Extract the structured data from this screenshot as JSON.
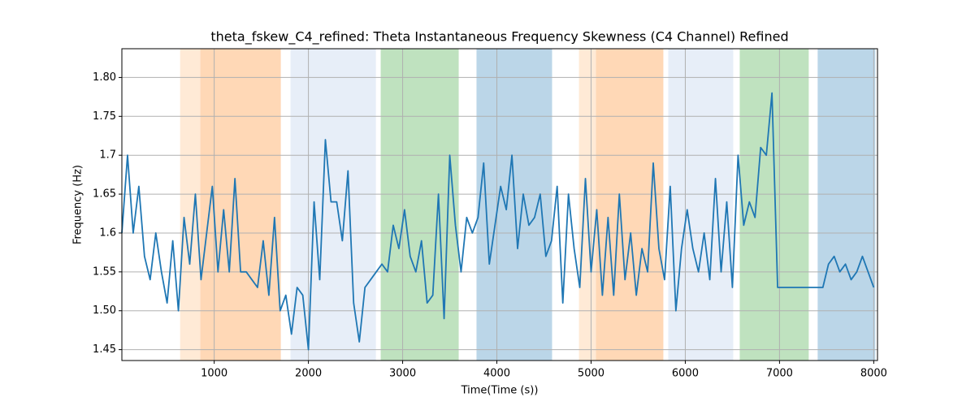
{
  "chart_data": {
    "type": "line",
    "title": "theta_fskew_C4_refined: Theta Instantaneous Frequency Skewness (C4 Channel) Refined",
    "x_label": "Time(Time (s))",
    "y_label": "Frequency (Hz)",
    "xlim": [
      20,
      8040
    ],
    "ylim": [
      1.436,
      1.837
    ],
    "xticks": [
      1000,
      2000,
      3000,
      4000,
      5000,
      6000,
      7000,
      8000
    ],
    "yticks": [
      1.45,
      {
        "value": 1.5,
        "label": "1.50"
      },
      1.55,
      1.6,
      1.65,
      1.7,
      1.75,
      {
        "value": 1.8,
        "label": "1.80"
      }
    ],
    "grid": true,
    "spans": [
      {
        "start": 638,
        "end": 853,
        "color": "#ffbb78",
        "alpha": 0.3
      },
      {
        "start": 853,
        "end": 1707,
        "color": "#ff7f0e",
        "alpha": 0.3
      },
      {
        "start": 1810,
        "end": 2716,
        "color": "#aec7e8",
        "alpha": 0.3
      },
      {
        "start": 2767,
        "end": 3595,
        "color": "#2ca02c",
        "alpha": 0.3
      },
      {
        "start": 3784,
        "end": 4586,
        "color": "#1f77b4",
        "alpha": 0.3
      },
      {
        "start": 4871,
        "end": 5052,
        "color": "#ffbb78",
        "alpha": 0.3
      },
      {
        "start": 5052,
        "end": 5767,
        "color": "#ff7f0e",
        "alpha": 0.3
      },
      {
        "start": 5819,
        "end": 6509,
        "color": "#aec7e8",
        "alpha": 0.3
      },
      {
        "start": 6578,
        "end": 7310,
        "color": "#2ca02c",
        "alpha": 0.3
      },
      {
        "start": 7405,
        "end": 8017,
        "color": "#1f77b4",
        "alpha": 0.3
      }
    ],
    "x": [
      20,
      80,
      140,
      200,
      260,
      320,
      380,
      440,
      500,
      560,
      620,
      680,
      740,
      800,
      860,
      920,
      980,
      1040,
      1100,
      1160,
      1220,
      1280,
      1340,
      1400,
      1460,
      1520,
      1580,
      1640,
      1700,
      1760,
      1820,
      1880,
      1940,
      2000,
      2060,
      2120,
      2180,
      2240,
      2300,
      2360,
      2420,
      2480,
      2540,
      2600,
      2660,
      2720,
      2780,
      2840,
      2900,
      2960,
      3020,
      3080,
      3140,
      3200,
      3260,
      3320,
      3380,
      3440,
      3500,
      3560,
      3620,
      3680,
      3740,
      3800,
      3860,
      3920,
      3980,
      4040,
      4100,
      4160,
      4220,
      4280,
      4340,
      4400,
      4460,
      4520,
      4580,
      4640,
      4700,
      4760,
      4820,
      4880,
      4940,
      5000,
      5060,
      5120,
      5180,
      5240,
      5300,
      5360,
      5420,
      5480,
      5540,
      5600,
      5660,
      5720,
      5780,
      5840,
      5900,
      5960,
      6020,
      6080,
      6140,
      6200,
      6260,
      6320,
      6380,
      6440,
      6500,
      6560,
      6620,
      6680,
      6740,
      6800,
      6860,
      6920,
      6980,
      7040,
      7100,
      7160,
      7220,
      7280,
      7340,
      7400,
      7460,
      7520,
      7580,
      7640,
      7700,
      7760,
      7820,
      7880,
      7940,
      8000
    ],
    "series": [
      {
        "color": "#1f77b4",
        "values": [
          1.6,
          1.7,
          1.6,
          1.66,
          1.57,
          1.54,
          1.6,
          1.55,
          1.51,
          1.59,
          1.5,
          1.62,
          1.56,
          1.65,
          1.54,
          1.6,
          1.66,
          1.55,
          1.63,
          1.55,
          1.67,
          1.55,
          1.55,
          1.54,
          1.53,
          1.59,
          1.52,
          1.62,
          1.5,
          1.52,
          1.47,
          1.53,
          1.52,
          1.45,
          1.64,
          1.54,
          1.72,
          1.64,
          1.64,
          1.59,
          1.68,
          1.51,
          1.46,
          1.53,
          1.54,
          1.55,
          1.56,
          1.55,
          1.61,
          1.58,
          1.63,
          1.57,
          1.55,
          1.59,
          1.51,
          1.52,
          1.65,
          1.49,
          1.7,
          1.61,
          1.55,
          1.62,
          1.6,
          1.62,
          1.69,
          1.56,
          1.61,
          1.66,
          1.63,
          1.7,
          1.58,
          1.65,
          1.61,
          1.62,
          1.65,
          1.57,
          1.59,
          1.66,
          1.51,
          1.65,
          1.58,
          1.53,
          1.67,
          1.55,
          1.63,
          1.52,
          1.62,
          1.52,
          1.65,
          1.54,
          1.6,
          1.52,
          1.58,
          1.55,
          1.69,
          1.58,
          1.54,
          1.66,
          1.5,
          1.58,
          1.63,
          1.58,
          1.55,
          1.6,
          1.54,
          1.67,
          1.55,
          1.64,
          1.53,
          1.7,
          1.61,
          1.64,
          1.62,
          1.71,
          1.7,
          1.78,
          1.53,
          1.53,
          1.53,
          1.53,
          1.53,
          1.53,
          1.53,
          1.53,
          1.53,
          1.56,
          1.57,
          1.55,
          1.56,
          1.54,
          1.55,
          1.57,
          1.55,
          1.53
        ]
      }
    ]
  }
}
